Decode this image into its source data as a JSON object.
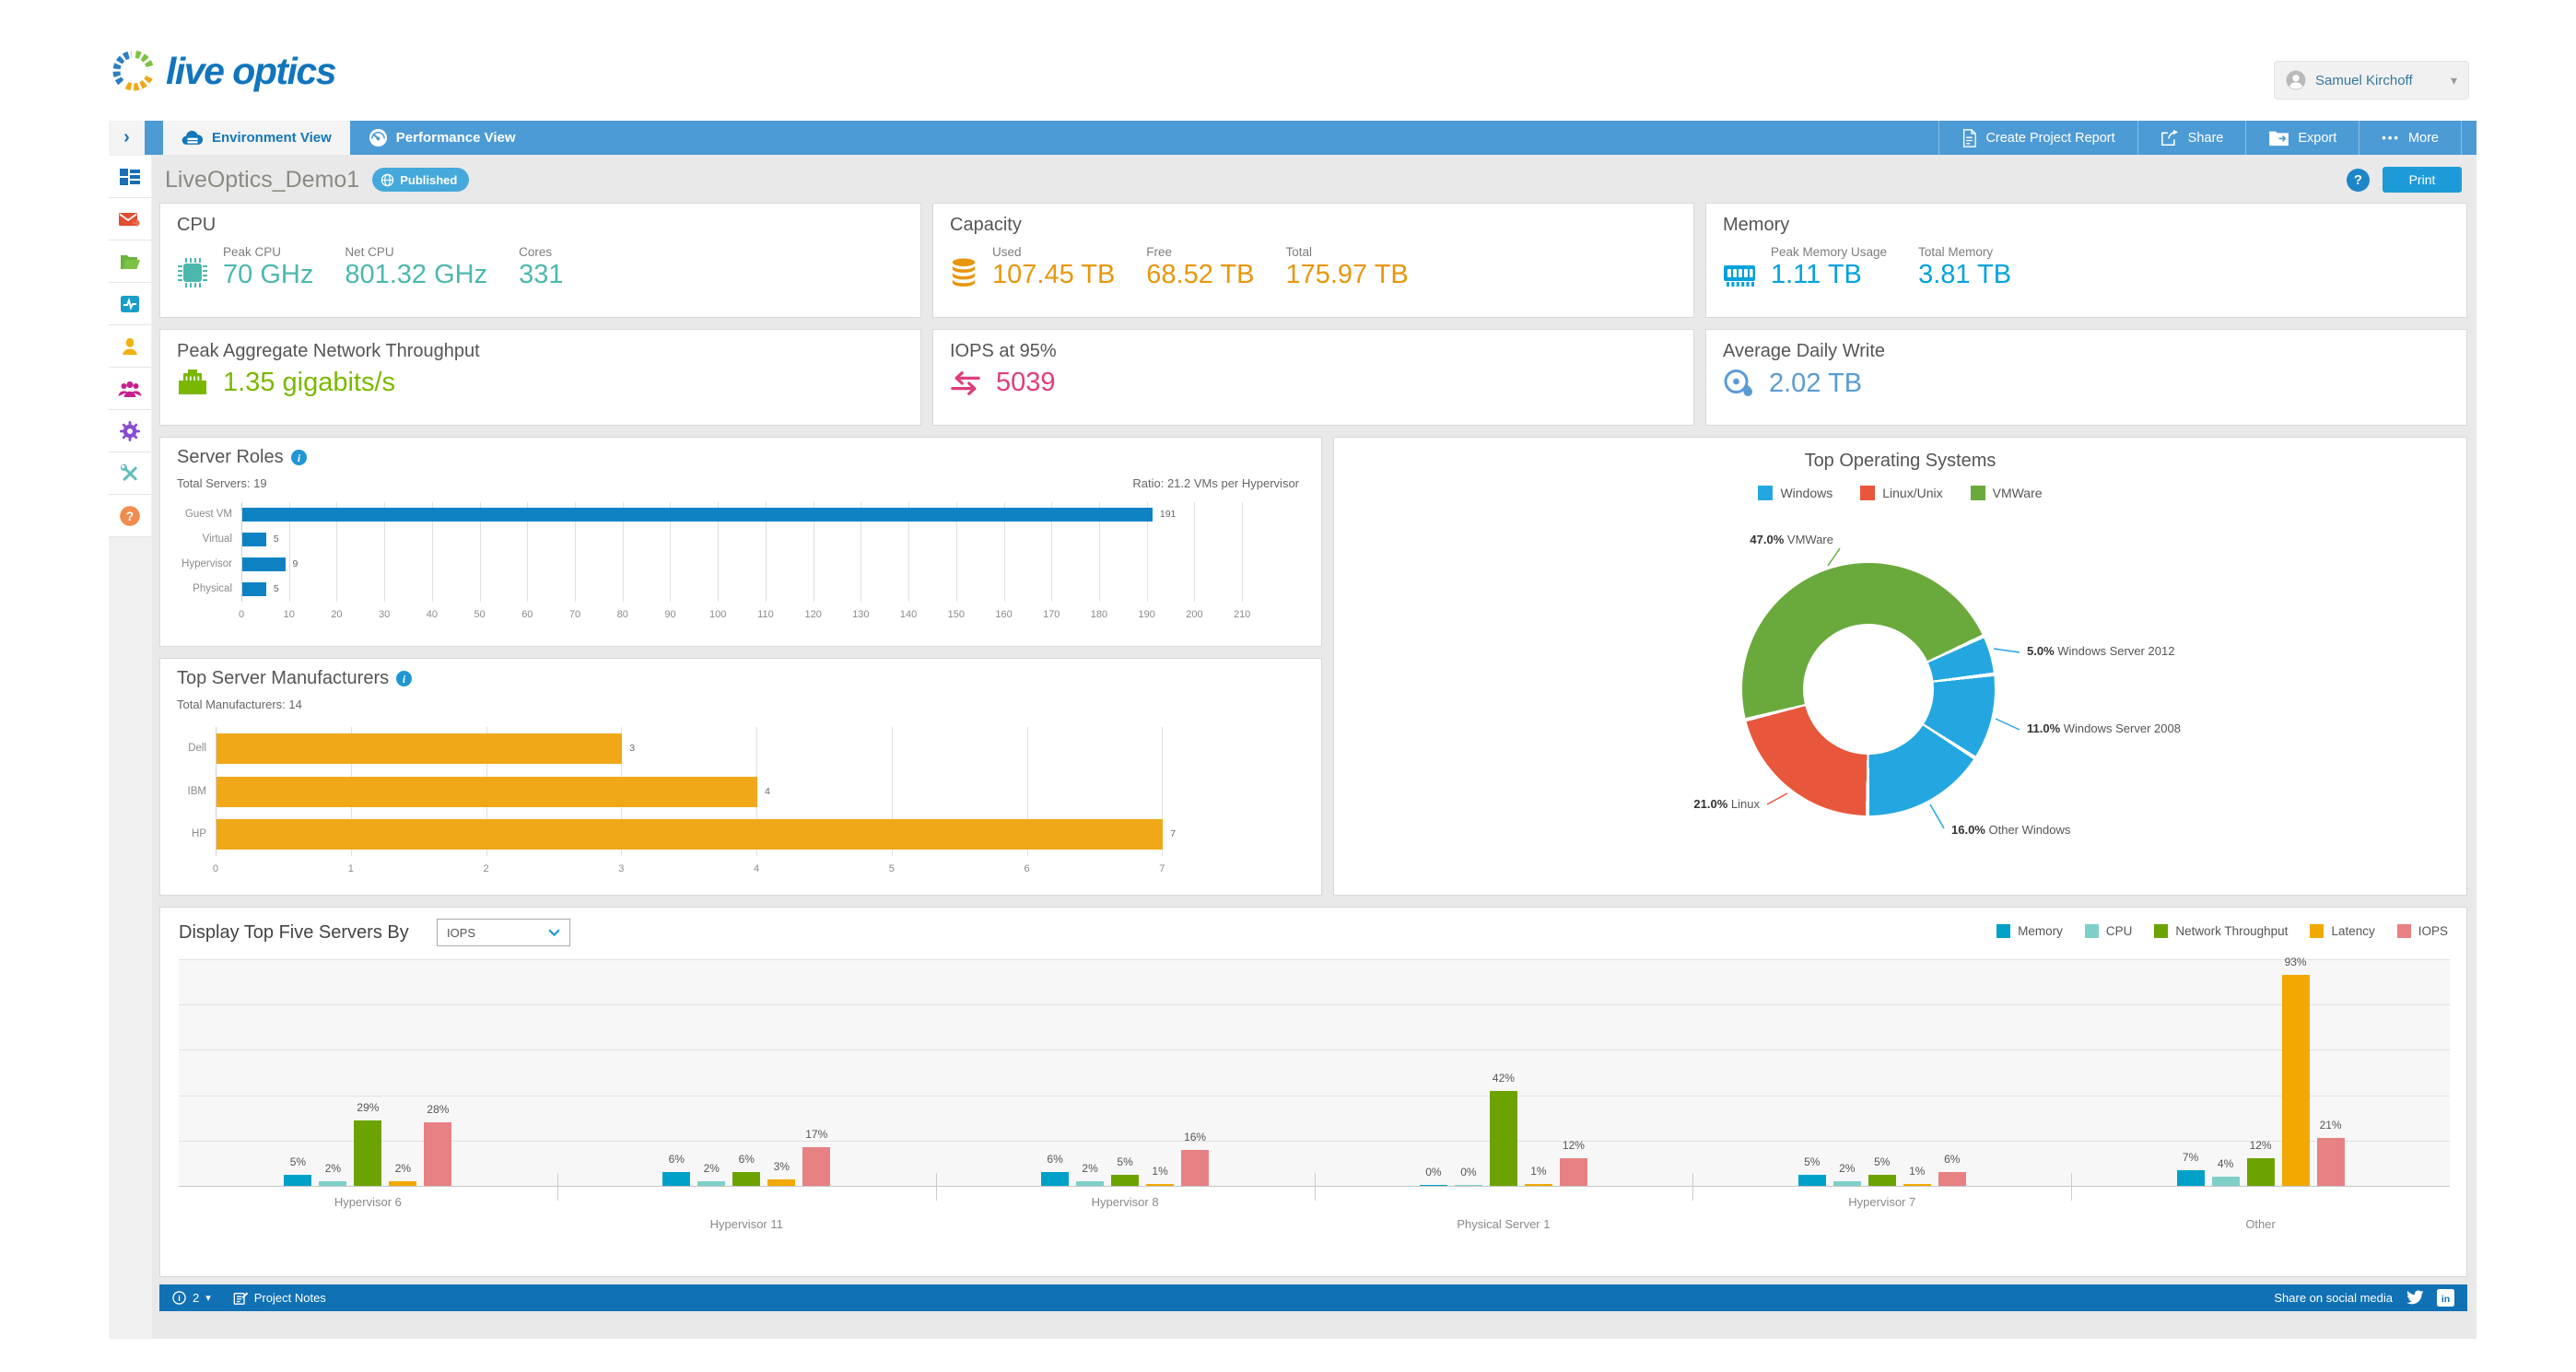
{
  "theme": {
    "navbar_bg": "#4d9bd5",
    "footer_bg": "#1171b5",
    "accent_blue": "#1d9bd8",
    "content_bg": "#e9e9e9",
    "card_border": "#d9d9d9"
  },
  "header": {
    "logo": "live optics",
    "user": {
      "name": "Samuel Kirchoff",
      "caret": "▾",
      "icon": "avatar-icon"
    }
  },
  "navbar": {
    "collapse_icon": "›",
    "tabs": [
      {
        "label": "Environment View",
        "icon": "cloud-icon",
        "active": true
      },
      {
        "label": "Performance View",
        "icon": "gauge-icon",
        "active": false
      }
    ],
    "actions": [
      {
        "label": "Create Project Report",
        "icon": "report-icon"
      },
      {
        "label": "Share",
        "icon": "share-icon"
      },
      {
        "label": "Export",
        "icon": "export-icon"
      },
      {
        "label": "More",
        "icon": "ellipsis-icon"
      }
    ]
  },
  "sidebar": {
    "items": [
      {
        "icon": "dashboard-icon"
      },
      {
        "icon": "mail-icon"
      },
      {
        "icon": "folder-icon"
      },
      {
        "icon": "monitor-icon"
      },
      {
        "icon": "user-icon"
      },
      {
        "icon": "users-icon"
      },
      {
        "icon": "settings-icon"
      },
      {
        "icon": "tools-icon"
      },
      {
        "icon": "help-icon"
      }
    ]
  },
  "title_bar": {
    "project_name": "LiveOptics_Demo1",
    "badge": "Published",
    "help_icon": "?",
    "print_label": "Print"
  },
  "kpi_cards": [
    {
      "title": "CPU",
      "icon": "chip-icon",
      "color": "#4bb8ae",
      "metrics": [
        {
          "label": "Peak CPU",
          "value": "70 GHz"
        },
        {
          "label": "Net CPU",
          "value": "801.32 GHz"
        },
        {
          "label": "Cores",
          "value": "331"
        }
      ]
    },
    {
      "title": "Capacity",
      "icon": "database-icon",
      "color": "#e8960c",
      "metrics": [
        {
          "label": "Used",
          "value": "107.45 TB"
        },
        {
          "label": "Free",
          "value": "68.52 TB"
        },
        {
          "label": "Total",
          "value": "175.97 TB"
        }
      ]
    },
    {
      "title": "Memory",
      "icon": "ram-icon",
      "color": "#00a2dc",
      "metrics": [
        {
          "label": "Peak Memory Usage",
          "value": "1.11 TB"
        },
        {
          "label": "Total Memory",
          "value": "3.81 TB"
        }
      ]
    },
    {
      "title": "Peak Aggregate Network Throughput",
      "icon": "ethernet-icon",
      "color": "#7ab800",
      "metrics": [
        {
          "label": "",
          "value": "1.35 gigabits/s"
        }
      ]
    },
    {
      "title": "IOPS at 95%",
      "icon": "arrows-icon",
      "color": "#de3d7c",
      "metrics": [
        {
          "label": "",
          "value": "5039"
        }
      ]
    },
    {
      "title": "Average Daily Write",
      "icon": "disc-icon",
      "color": "#5a9bd4",
      "metrics": [
        {
          "label": "",
          "value": "2.02 TB"
        }
      ]
    }
  ],
  "chart_data": [
    {
      "id": "server_roles",
      "type": "bar",
      "orientation": "horizontal",
      "title": "Server Roles",
      "subtitle_left": "Total Servers: 19",
      "subtitle_right": "Ratio: 21.2 VMs per Hypervisor",
      "categories": [
        "Guest VM",
        "Virtual",
        "Hypervisor",
        "Physical"
      ],
      "values": [
        191,
        5,
        9,
        5
      ],
      "bar_color": "#0f82c4",
      "xlim": [
        0,
        215
      ],
      "xticks": [
        0,
        10,
        20,
        30,
        40,
        50,
        60,
        70,
        80,
        90,
        100,
        110,
        120,
        130,
        140,
        150,
        160,
        170,
        180,
        190,
        200,
        210
      ],
      "grid": true
    },
    {
      "id": "top_server_manufacturers",
      "type": "bar",
      "orientation": "horizontal",
      "title": "Top Server Manufacturers",
      "subtitle_left": "Total Manufacturers: 14",
      "categories": [
        "Dell",
        "IBM",
        "HP"
      ],
      "values": [
        3,
        4,
        7
      ],
      "bar_color": "#f0a818",
      "xlim": [
        0,
        7.7
      ],
      "xticks": [
        0,
        1,
        2,
        3,
        4,
        5,
        6,
        7
      ],
      "grid": true
    },
    {
      "id": "top_operating_systems",
      "type": "pie",
      "title": "Top Operating Systems",
      "legend": [
        {
          "label": "Windows",
          "color": "#24a7e0"
        },
        {
          "label": "Linux/Unix",
          "color": "#e8563c"
        },
        {
          "label": "VMWare",
          "color": "#6aaa3c"
        }
      ],
      "slices": [
        {
          "label": "VMWare",
          "pct": 47.0,
          "color": "#6aaa3c"
        },
        {
          "label": "Windows Server 2012",
          "pct": 5.0,
          "color": "#24a7e0"
        },
        {
          "label": "Windows Server 2008",
          "pct": 11.0,
          "color": "#24a7e0"
        },
        {
          "label": "Other Windows",
          "pct": 16.0,
          "color": "#24a7e0"
        },
        {
          "label": "Linux",
          "pct": 21.0,
          "color": "#e8563c"
        }
      ],
      "start_angle_deg": 256,
      "donut": true,
      "legend_position": "top-center"
    },
    {
      "id": "top_five_servers",
      "type": "bar",
      "grouped": true,
      "title": "Display Top Five Servers By",
      "selector_value": "IOPS",
      "categories": [
        "Hypervisor 6",
        "Hypervisor 11",
        "Hypervisor 8",
        "Physical Server 1",
        "Hypervisor 7",
        "Other"
      ],
      "series": [
        {
          "name": "Memory",
          "color": "#00a1c9",
          "values": [
            5,
            6,
            6,
            0,
            5,
            7
          ]
        },
        {
          "name": "CPU",
          "color": "#7fcfc9",
          "values": [
            2,
            2,
            2,
            0,
            2,
            4
          ]
        },
        {
          "name": "Network Throughput",
          "color": "#6ca300",
          "values": [
            29,
            6,
            5,
            42,
            5,
            12
          ]
        },
        {
          "name": "Latency",
          "color": "#f2a800",
          "values": [
            2,
            3,
            1,
            1,
            1,
            93
          ]
        },
        {
          "name": "IOPS",
          "color": "#e88183",
          "values": [
            28,
            17,
            16,
            12,
            6,
            21
          ]
        }
      ],
      "unit": "%",
      "ylim": [
        0,
        100
      ],
      "grid_step": 20,
      "legend_position": "top-right"
    }
  ],
  "footer": {
    "count": "2",
    "caret": "▾",
    "notes_label": "Project Notes",
    "share_label": "Share on social media",
    "icons": [
      "twitter-icon",
      "linkedin-icon"
    ]
  }
}
